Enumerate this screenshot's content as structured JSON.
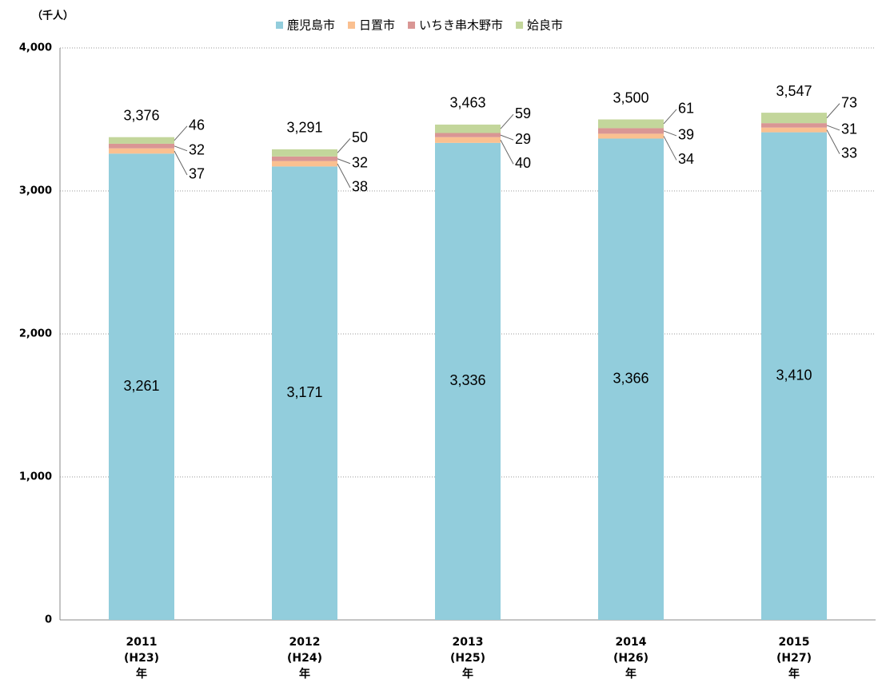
{
  "chart_data": {
    "type": "stacked_bar",
    "y_label": "（千人）",
    "categories": [
      [
        "2011",
        "(H23)",
        "年"
      ],
      [
        "2012",
        "(H24)",
        "年"
      ],
      [
        "2013",
        "(H25)",
        "年"
      ],
      [
        "2014",
        "(H26)",
        "年"
      ],
      [
        "2015",
        "(H27)",
        "年"
      ]
    ],
    "series": [
      {
        "name": "鹿児島市",
        "color": "#92cddc",
        "values": [
          3261,
          3171,
          3336,
          3366,
          3410
        ],
        "value_labels": [
          "3,261",
          "3,171",
          "3,336",
          "3,366",
          "3,410"
        ]
      },
      {
        "name": "日置市",
        "color": "#fac090",
        "values": [
          37,
          38,
          40,
          34,
          33
        ]
      },
      {
        "name": "いちき串木野市",
        "color": "#d99694",
        "values": [
          32,
          32,
          29,
          39,
          31
        ]
      },
      {
        "name": "姶良市",
        "color": "#c3d69b",
        "values": [
          46,
          50,
          59,
          61,
          73
        ]
      }
    ],
    "total": {
      "values": [
        3376,
        3291,
        3463,
        3500,
        3547
      ],
      "value_labels": [
        "3,376",
        "3,291",
        "3,463",
        "3,500",
        "3,547"
      ]
    },
    "ylim": [
      0,
      4000
    ],
    "yticks": [
      0,
      {
        "value": 1000,
        "label": "1,000"
      },
      {
        "value": 2000,
        "label": "2,000"
      },
      {
        "value": 3000,
        "label": "3,000"
      },
      {
        "value": 4000,
        "label": "4,000"
      }
    ],
    "grid": true,
    "legend": "top"
  }
}
